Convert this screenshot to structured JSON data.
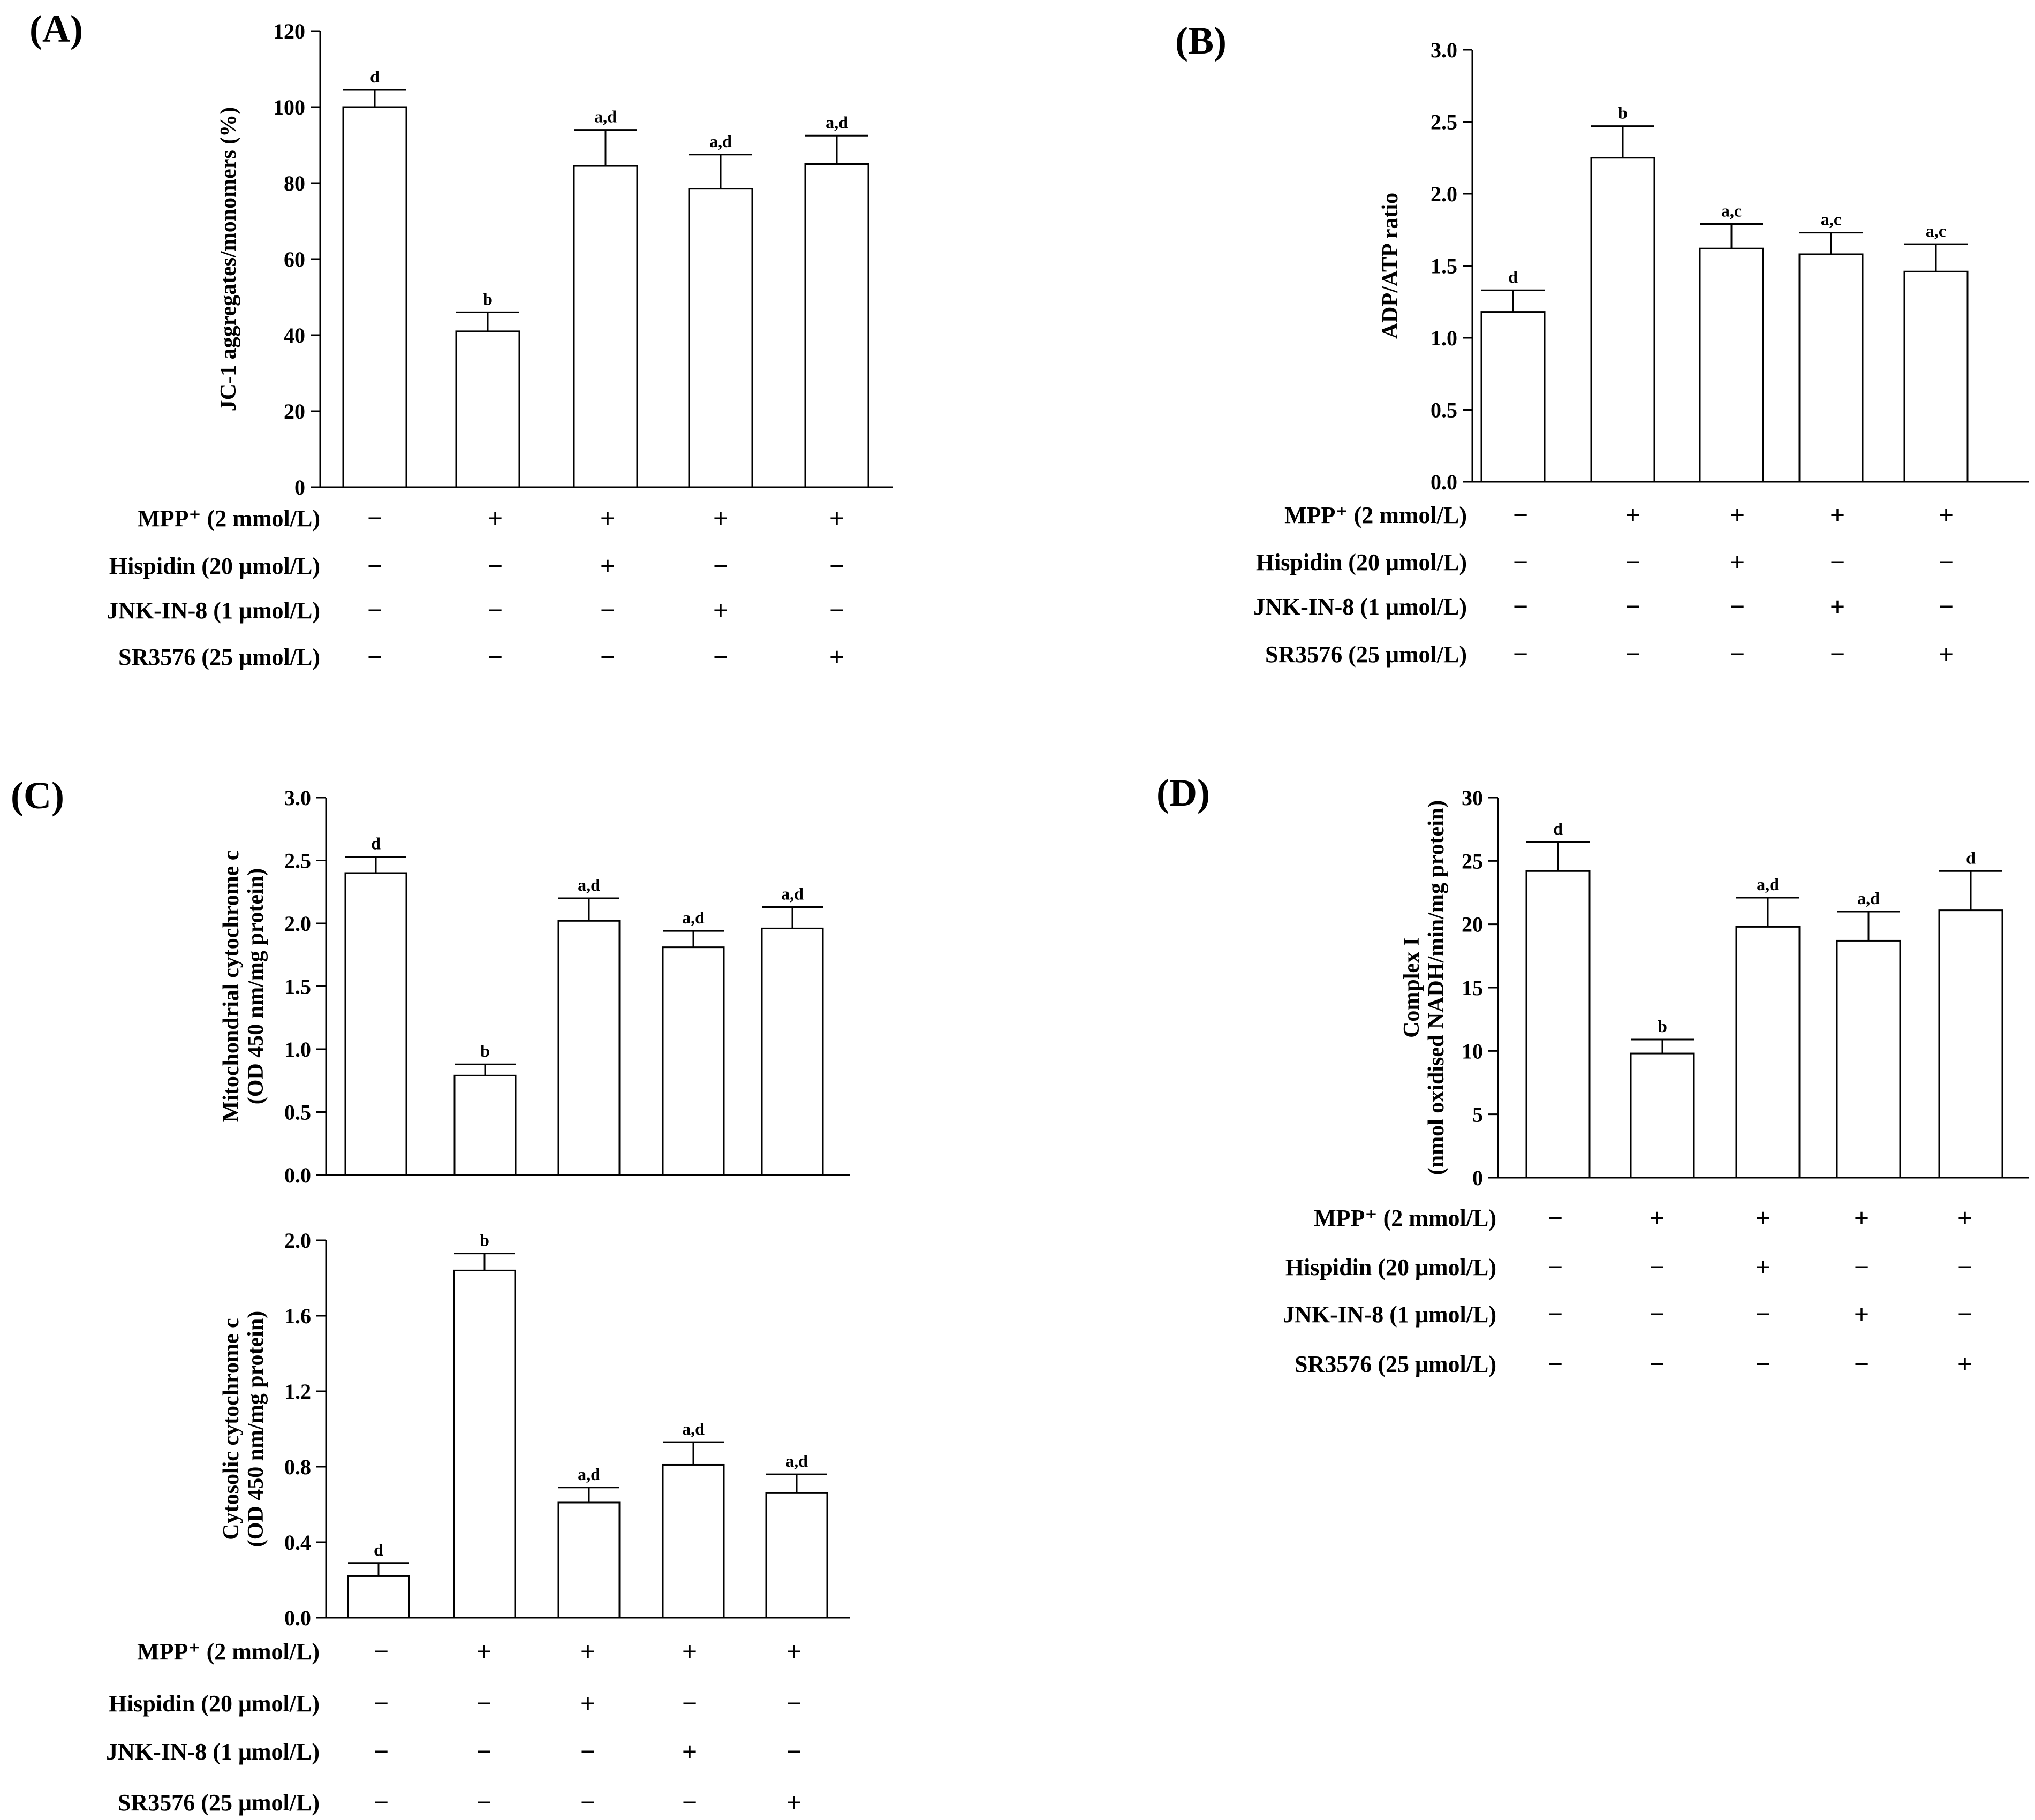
{
  "treatments": {
    "mpp": "MPP⁺ (2 mmol/L)",
    "hispidin": "Hispidin (20 μmol/L)",
    "jnk": "JNK-IN-8 (1 μmol/L)",
    "sr": "SR3576 (25 μmol/L)"
  },
  "sign_plus": "+",
  "sign_minus": "−",
  "treatment_matrix": [
    [
      "−",
      "+",
      "+",
      "+",
      "+"
    ],
    [
      "−",
      "−",
      "+",
      "−",
      "−"
    ],
    [
      "−",
      "−",
      "−",
      "+",
      "−"
    ],
    [
      "−",
      "−",
      "−",
      "−",
      "+"
    ]
  ],
  "chart_data": [
    {
      "panel": "(A)",
      "type": "bar",
      "ylabel": "JC-1 aggregates/monomers (%)",
      "ylim": [
        0,
        120
      ],
      "yticks": [
        "0",
        "20",
        "40",
        "60",
        "80",
        "100",
        "120"
      ],
      "values": [
        100,
        41,
        84.5,
        78.5,
        85
      ],
      "errors": [
        4.5,
        5,
        9.5,
        9,
        7.5
      ],
      "labels": [
        "d",
        "b",
        "a,d",
        "a,d",
        "a,d"
      ]
    },
    {
      "panel": "(B)",
      "type": "bar",
      "ylabel": "ADP/ATP ratio",
      "ylim": [
        0,
        3
      ],
      "yticks": [
        "0.0",
        "0.5",
        "1.0",
        "1.5",
        "2.0",
        "2.5",
        "3.0"
      ],
      "values": [
        1.18,
        2.25,
        1.62,
        1.58,
        1.46
      ],
      "errors": [
        0.15,
        0.22,
        0.17,
        0.15,
        0.19
      ],
      "labels": [
        "d",
        "b",
        "a,c",
        "a,c",
        "a,c"
      ]
    },
    {
      "panel": "(C)",
      "type": "bar",
      "ylabel": [
        "Mitochondrial cytochrome c",
        "(OD 450 nm/mg protein)"
      ],
      "ylim": [
        0,
        3
      ],
      "yticks": [
        "0.0",
        "0.5",
        "1.0",
        "1.5",
        "2.0",
        "2.5",
        "3.0"
      ],
      "values": [
        2.4,
        0.79,
        2.02,
        1.81,
        1.96
      ],
      "errors": [
        0.13,
        0.09,
        0.18,
        0.13,
        0.17
      ],
      "labels": [
        "d",
        "b",
        "a,d",
        "a,d",
        "a,d"
      ]
    },
    {
      "panel": "",
      "type": "bar",
      "ylabel": [
        "Cytosolic cytochrome c",
        "(OD 450 nm/mg protein)"
      ],
      "ylim": [
        0,
        2
      ],
      "yticks": [
        "0.0",
        "0.4",
        "0.8",
        "1.2",
        "1.6",
        "2.0"
      ],
      "values": [
        0.22,
        1.84,
        0.61,
        0.81,
        0.66
      ],
      "errors": [
        0.07,
        0.09,
        0.08,
        0.12,
        0.1
      ],
      "labels": [
        "d",
        "b",
        "a,d",
        "a,d",
        "a,d"
      ]
    },
    {
      "panel": "(D)",
      "type": "bar",
      "ylabel": [
        "Complex I",
        "(nmol oxidised NADH/min/mg protein)"
      ],
      "ylim": [
        0,
        30
      ],
      "yticks": [
        "0",
        "5",
        "10",
        "15",
        "20",
        "25",
        "30"
      ],
      "values": [
        24.2,
        9.8,
        19.8,
        18.7,
        21.1
      ],
      "errors": [
        2.3,
        1.1,
        2.3,
        2.3,
        3.1
      ],
      "labels": [
        "d",
        "b",
        "a,d",
        "a,d",
        "d"
      ]
    }
  ]
}
